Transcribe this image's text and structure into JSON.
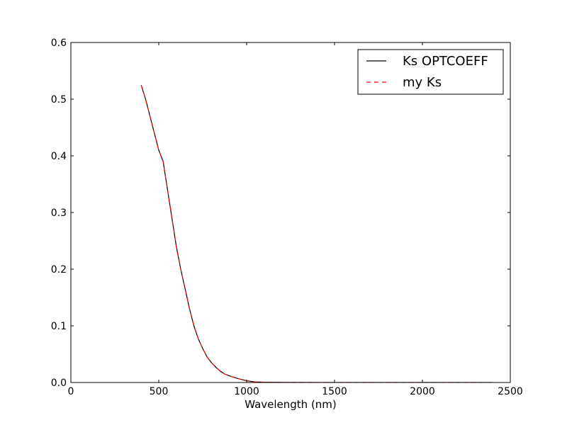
{
  "chart_data": {
    "type": "line",
    "title": "",
    "xlabel": "Wavelength (nm)",
    "ylabel": "",
    "xlim": [
      0,
      2500
    ],
    "ylim": [
      0,
      0.6
    ],
    "xticks": [
      0,
      500,
      1000,
      1500,
      2000,
      2500
    ],
    "xtick_labels": [
      "0",
      "500",
      "1000",
      "1500",
      "2000",
      "2500"
    ],
    "yticks": [
      0.0,
      0.1,
      0.2,
      0.3,
      0.4,
      0.5,
      0.6
    ],
    "ytick_labels": [
      "0.0",
      "0.1",
      "0.2",
      "0.3",
      "0.4",
      "0.5",
      "0.6"
    ],
    "grid": false,
    "legend_position": "top-right",
    "series": [
      {
        "name": "Ks OPTCOEFF",
        "color": "#000000",
        "linestyle": "solid",
        "x": [
          400,
          425,
          450,
          475,
          500,
          525,
          530,
          550,
          575,
          600,
          625,
          650,
          675,
          700,
          725,
          750,
          775,
          800,
          825,
          850,
          875,
          900,
          950,
          1000,
          1050,
          1100,
          1200,
          1400,
          1600,
          1800,
          2000,
          2200,
          2400
        ],
        "y": [
          0.525,
          0.5,
          0.47,
          0.44,
          0.41,
          0.39,
          0.38,
          0.34,
          0.29,
          0.24,
          0.2,
          0.165,
          0.13,
          0.1,
          0.077,
          0.06,
          0.045,
          0.035,
          0.027,
          0.02,
          0.015,
          0.012,
          0.007,
          0.003,
          0.001,
          0.0005,
          0.0002,
          0.0001,
          0.0001,
          0.0001,
          0.0001,
          0.0001,
          0.0001
        ]
      },
      {
        "name": "my Ks",
        "color": "#ff0000",
        "linestyle": "dashed",
        "x": [
          400,
          425,
          450,
          475,
          500,
          525,
          530,
          550,
          575,
          600,
          625,
          650,
          675,
          700,
          725,
          750,
          775,
          800,
          825,
          850,
          875,
          900,
          950,
          1000,
          1050,
          1100,
          1200,
          1400,
          1600,
          1800,
          2000,
          2200,
          2400
        ],
        "y": [
          0.525,
          0.5,
          0.47,
          0.44,
          0.41,
          0.39,
          0.38,
          0.34,
          0.29,
          0.24,
          0.2,
          0.165,
          0.13,
          0.1,
          0.077,
          0.06,
          0.045,
          0.035,
          0.027,
          0.02,
          0.015,
          0.012,
          0.007,
          0.003,
          0.001,
          0.0005,
          0.0002,
          0.0001,
          0.0001,
          0.0001,
          0.0001,
          0.0001,
          0.0001
        ]
      }
    ]
  }
}
